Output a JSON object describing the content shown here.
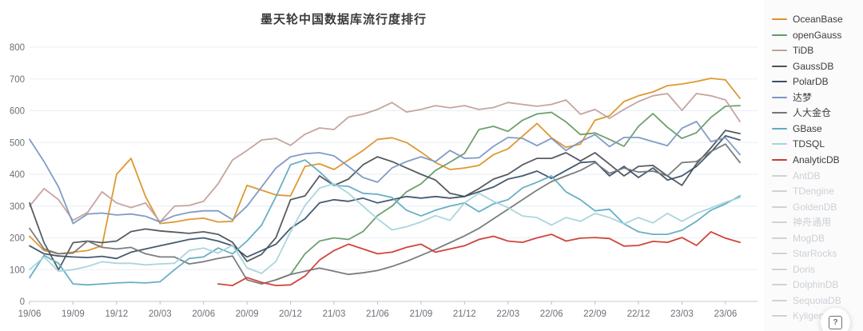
{
  "chart_data": {
    "type": "line",
    "title": "墨天轮中国数据库流行度排行",
    "xlabel": "",
    "ylabel": "",
    "ylim": [
      0,
      800
    ],
    "y_ticks": [
      0,
      100,
      200,
      300,
      400,
      500,
      600,
      700,
      800
    ],
    "grid": true,
    "legend_position": "right",
    "x_tick_labels": [
      "19/06",
      "19/09",
      "19/12",
      "20/03",
      "20/06",
      "20/09",
      "20/12",
      "21/03",
      "21/06",
      "21/09",
      "21/12",
      "22/03",
      "22/06",
      "22/09",
      "22/12",
      "23/03",
      "23/06"
    ],
    "months": [
      "19/06",
      "19/07",
      "19/08",
      "19/09",
      "19/10",
      "19/11",
      "19/12",
      "20/01",
      "20/02",
      "20/03",
      "20/04",
      "20/05",
      "20/06",
      "20/07",
      "20/08",
      "20/09",
      "20/10",
      "20/11",
      "20/12",
      "21/01",
      "21/02",
      "21/03",
      "21/04",
      "21/05",
      "21/06",
      "21/07",
      "21/08",
      "21/09",
      "21/10",
      "21/11",
      "21/12",
      "22/01",
      "22/02",
      "22/03",
      "22/04",
      "22/05",
      "22/06",
      "22/07",
      "22/08",
      "22/09",
      "22/10",
      "22/11",
      "22/12",
      "23/01",
      "23/02",
      "23/03",
      "23/04",
      "23/05",
      "23/06",
      "23/07"
    ],
    "series": [
      {
        "name": "OceanBase",
        "color": "#dd9226",
        "values": [
          205,
          160,
          150,
          155,
          160,
          175,
          400,
          450,
          330,
          245,
          250,
          258,
          262,
          250,
          252,
          365,
          350,
          335,
          332,
          425,
          433,
          415,
          445,
          475,
          510,
          515,
          500,
          470,
          437,
          415,
          420,
          428,
          462,
          480,
          520,
          560,
          515,
          485,
          495,
          570,
          584,
          629,
          647,
          659,
          679,
          684,
          692,
          702,
          697,
          639
        ]
      },
      {
        "name": "openGauss",
        "color": "#669a66",
        "values": [
          null,
          null,
          null,
          null,
          null,
          null,
          null,
          null,
          null,
          null,
          null,
          null,
          null,
          null,
          null,
          null,
          null,
          68,
          85,
          150,
          190,
          200,
          195,
          220,
          270,
          300,
          345,
          370,
          412,
          438,
          466,
          541,
          551,
          535,
          570,
          590,
          595,
          565,
          525,
          530,
          510,
          488,
          551,
          591,
          548,
          513,
          531,
          579,
          614,
          616
        ]
      },
      {
        "name": "TiDB",
        "color": "#c2a09a",
        "values": [
          300,
          355,
          320,
          255,
          280,
          345,
          310,
          295,
          310,
          250,
          300,
          302,
          315,
          370,
          445,
          475,
          508,
          513,
          491,
          526,
          546,
          541,
          580,
          589,
          604,
          626,
          596,
          604,
          616,
          609,
          616,
          604,
          610,
          626,
          620,
          614,
          620,
          634,
          589,
          604,
          576,
          604,
          629,
          647,
          654,
          601,
          654,
          647,
          634,
          566
        ]
      },
      {
        "name": "GaussDB",
        "color": "#4e5359",
        "values": [
          310,
          185,
          100,
          185,
          190,
          185,
          190,
          220,
          228,
          222,
          218,
          214,
          219,
          211,
          186,
          126,
          148,
          201,
          320,
          332,
          395,
          365,
          385,
          430,
          455,
          440,
          420,
          400,
          382,
          340,
          330,
          355,
          385,
          400,
          430,
          450,
          450,
          468,
          442,
          468,
          432,
          395,
          425,
          428,
          395,
          365,
          433,
          483,
          538,
          528
        ]
      },
      {
        "name": "PolarDB",
        "color": "#3b5269",
        "values": [
          175,
          150,
          143,
          140,
          138,
          142,
          135,
          155,
          165,
          175,
          185,
          195,
          200,
          190,
          175,
          140,
          160,
          180,
          230,
          260,
          310,
          320,
          315,
          325,
          310,
          320,
          330,
          325,
          330,
          325,
          330,
          345,
          360,
          385,
          395,
          410,
          387,
          412,
          437,
          440,
          395,
          425,
          390,
          420,
          382,
          395,
          425,
          470,
          521,
          508
        ]
      },
      {
        "name": "达梦",
        "color": "#7b97c3",
        "values": [
          510,
          440,
          360,
          245,
          275,
          278,
          272,
          275,
          268,
          250,
          270,
          280,
          285,
          285,
          257,
          300,
          360,
          420,
          455,
          465,
          468,
          458,
          425,
          390,
          375,
          420,
          440,
          455,
          440,
          475,
          450,
          452,
          488,
          516,
          513,
          490,
          513,
          475,
          503,
          525,
          487,
          516,
          516,
          503,
          490,
          545,
          566,
          503,
          515,
          462
        ]
      },
      {
        "name": "人大金仓",
        "color": "#74767a",
        "values": [
          230,
          165,
          150,
          152,
          190,
          170,
          165,
          170,
          150,
          140,
          140,
          118,
          125,
          135,
          143,
          68,
          55,
          68,
          85,
          95,
          105,
          95,
          85,
          90,
          97,
          110,
          126,
          145,
          164,
          185,
          206,
          230,
          260,
          290,
          320,
          350,
          377,
          395,
          412,
          437,
          403,
          420,
          407,
          410,
          395,
          437,
          440,
          472,
          495,
          437
        ]
      },
      {
        "name": "GBase",
        "color": "#61abc3",
        "values": [
          75,
          145,
          120,
          55,
          52,
          55,
          58,
          60,
          58,
          62,
          100,
          135,
          140,
          168,
          150,
          190,
          240,
          330,
          430,
          445,
          408,
          365,
          362,
          340,
          337,
          327,
          287,
          269,
          287,
          300,
          310,
          282,
          307,
          320,
          357,
          375,
          395,
          345,
          320,
          285,
          290,
          244,
          219,
          211,
          211,
          224,
          252,
          287,
          307,
          332
        ]
      },
      {
        "name": "TDSQL",
        "color": "#a5d4db",
        "values": [
          100,
          140,
          95,
          100,
          110,
          125,
          120,
          120,
          115,
          118,
          120,
          160,
          168,
          152,
          177,
          106,
          88,
          126,
          219,
          302,
          357,
          370,
          340,
          300,
          260,
          225,
          235,
          250,
          270,
          255,
          310,
          340,
          315,
          295,
          269,
          264,
          240,
          264,
          252,
          277,
          264,
          244,
          264,
          247,
          277,
          252,
          277,
          294,
          312,
          327
        ]
      },
      {
        "name": "AnalyticDB",
        "color": "#cf3a30",
        "values": [
          null,
          null,
          null,
          null,
          null,
          null,
          null,
          null,
          null,
          null,
          null,
          null,
          null,
          55,
          50,
          75,
          60,
          50,
          52,
          80,
          130,
          160,
          180,
          165,
          150,
          155,
          170,
          180,
          155,
          165,
          175,
          195,
          205,
          190,
          186,
          200,
          211,
          190,
          199,
          201,
          198,
          174,
          176,
          189,
          186,
          201,
          176,
          219,
          199,
          186
        ]
      }
    ]
  },
  "legend": {
    "disabled_items": [
      "AntDB",
      "TDengine",
      "GoldenDB",
      "神舟通用",
      "MogDB",
      "StarRocks",
      "Doris",
      "DolphinDB",
      "SequoiaDB",
      "Kyligence"
    ],
    "disabled_color": "#cfd2d6"
  },
  "help_button": {
    "glyph": "?"
  }
}
